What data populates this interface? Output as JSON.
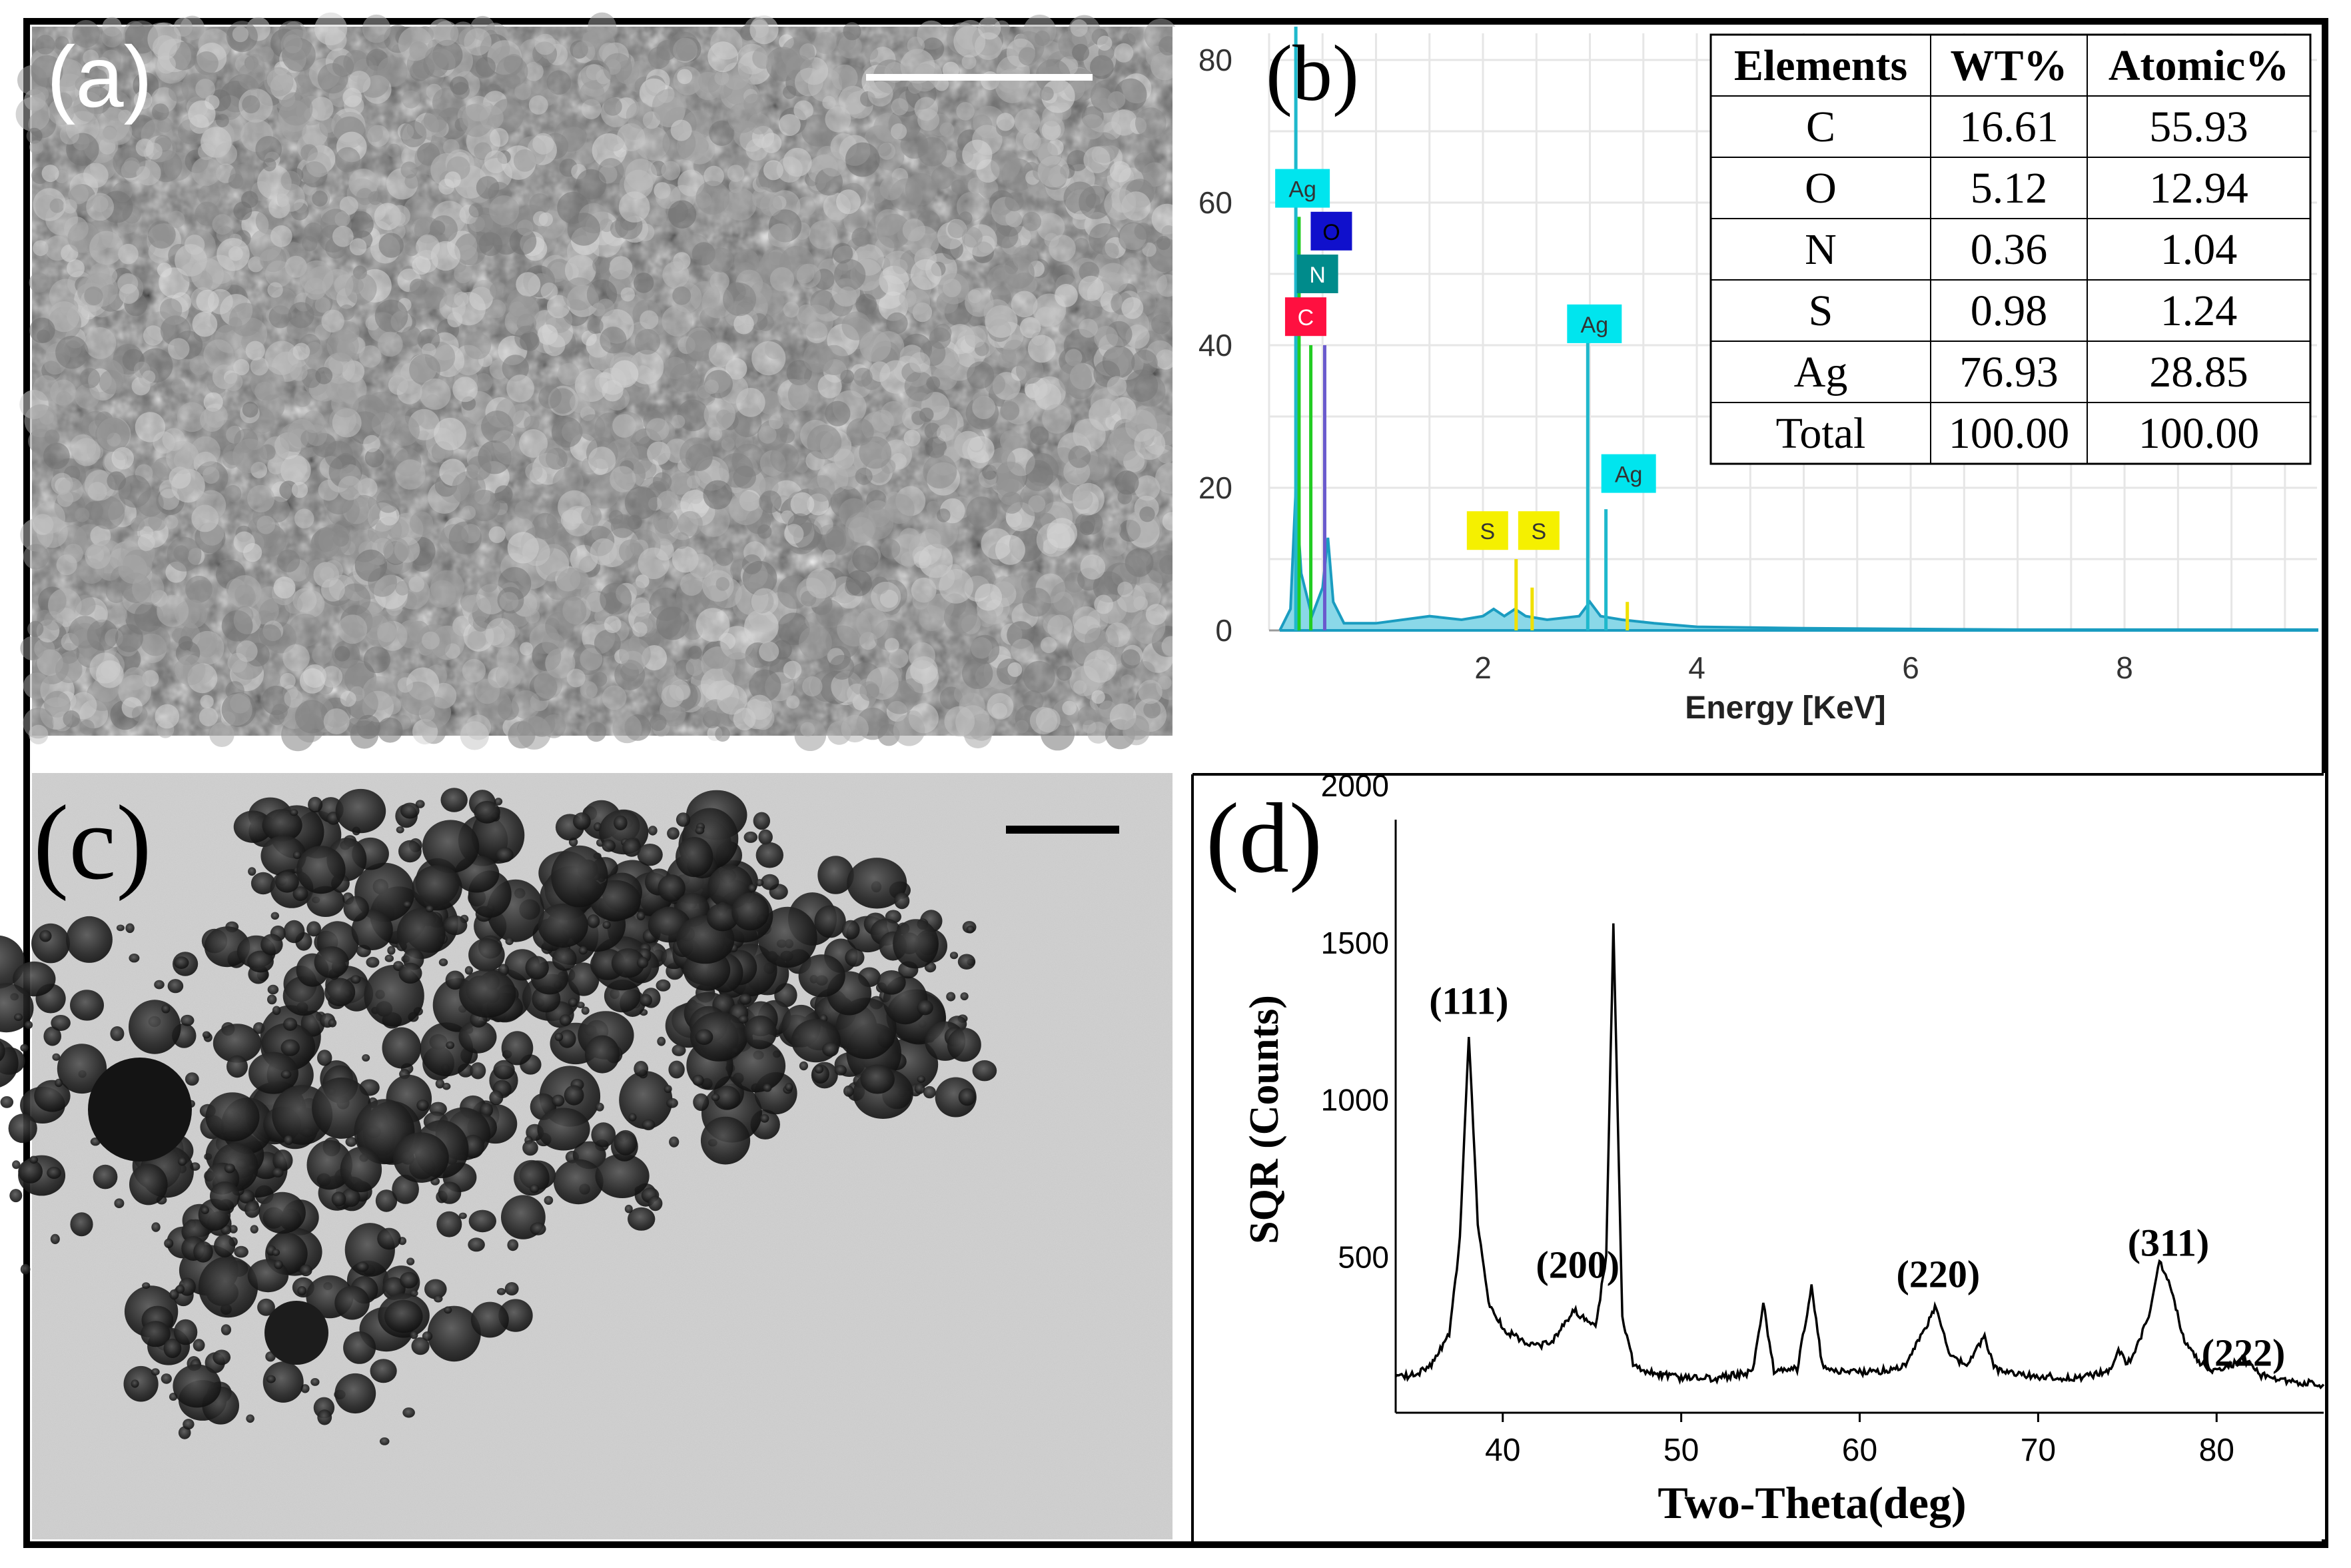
{
  "panels": {
    "a": {
      "label": "(a)"
    },
    "b": {
      "label": "(b)"
    },
    "c": {
      "label": "(c)"
    },
    "d": {
      "label": "(d)"
    }
  },
  "table": {
    "headers": [
      "Elements",
      "WT%",
      "Atomic%"
    ],
    "rows": [
      [
        "C",
        "16.61",
        "55.93"
      ],
      [
        "O",
        "5.12",
        "12.94"
      ],
      [
        "N",
        "0.36",
        "1.04"
      ],
      [
        "S",
        "0.98",
        "1.24"
      ],
      [
        "Ag",
        "76.93",
        "28.85"
      ],
      [
        "Total",
        "100.00",
        "100.00"
      ]
    ]
  },
  "chart_data": [
    {
      "type": "line",
      "panel": "b",
      "title": "",
      "xlabel": "Energy [KeV]",
      "ylabel": "",
      "xlim": [
        0,
        9.8
      ],
      "ylim": [
        0,
        80
      ],
      "grid": true,
      "x_ticks": [
        2,
        4,
        6,
        8
      ],
      "y_ticks": [
        0,
        20,
        40,
        60,
        80
      ],
      "peaks": [
        {
          "element": "C",
          "energy": 0.28,
          "height": 58,
          "color": "#22cc22"
        },
        {
          "element": "N",
          "energy": 0.39,
          "height": 40,
          "color": "#22cc22"
        },
        {
          "element": "O",
          "energy": 0.52,
          "height": 40,
          "color": "#6a5acd"
        },
        {
          "element": "Ag",
          "energy": 0.25,
          "height": 85,
          "color": "#1fb8cc"
        },
        {
          "element": "S",
          "energy": 2.31,
          "height": 10,
          "color": "#f0e000"
        },
        {
          "element": "S",
          "energy": 2.46,
          "height": 6,
          "color": "#f0e000"
        },
        {
          "element": "Ag",
          "energy": 2.98,
          "height": 41,
          "color": "#1fb8cc"
        },
        {
          "element": "Ag",
          "energy": 3.15,
          "height": 17,
          "color": "#1fb8cc"
        },
        {
          "element": "Ag",
          "energy": 3.35,
          "height": 4,
          "color": "#f0e000"
        }
      ],
      "spectrum": [
        [
          0.1,
          0
        ],
        [
          0.2,
          3
        ],
        [
          0.25,
          20
        ],
        [
          0.3,
          8
        ],
        [
          0.4,
          2
        ],
        [
          0.5,
          6
        ],
        [
          0.55,
          13
        ],
        [
          0.6,
          4
        ],
        [
          0.7,
          1
        ],
        [
          1.0,
          1
        ],
        [
          1.5,
          2
        ],
        [
          1.8,
          1.5
        ],
        [
          2.0,
          2
        ],
        [
          2.1,
          3
        ],
        [
          2.2,
          2
        ],
        [
          2.3,
          3
        ],
        [
          2.4,
          2
        ],
        [
          2.6,
          1.5
        ],
        [
          2.9,
          2
        ],
        [
          3.0,
          4
        ],
        [
          3.1,
          2
        ],
        [
          3.3,
          1.5
        ],
        [
          3.6,
          1
        ],
        [
          4.0,
          0.5
        ],
        [
          5.0,
          0.3
        ],
        [
          6.0,
          0.2
        ],
        [
          7.0,
          0.1
        ],
        [
          8.0,
          0.1
        ],
        [
          9.8,
          0.1
        ]
      ],
      "markers": [
        {
          "text": "Ag",
          "energy": 0.25,
          "level": 62,
          "bg": "#00e5ee",
          "fg": "#333333"
        },
        {
          "text": "O",
          "energy": 0.52,
          "level": 56,
          "bg": "#1010cc",
          "fg": "#000000"
        },
        {
          "text": "N",
          "energy": 0.39,
          "level": 50,
          "bg": "#008b8b",
          "fg": "#ffffff"
        },
        {
          "text": "C",
          "energy": 0.28,
          "level": 44,
          "bg": "#ff1040",
          "fg": "#ffffff"
        },
        {
          "text": "Ag",
          "energy": 2.98,
          "level": 43,
          "bg": "#00e5ee",
          "fg": "#333333"
        },
        {
          "text": "Ag",
          "energy": 3.3,
          "level": 22,
          "bg": "#00e5ee",
          "fg": "#333333"
        },
        {
          "text": "S",
          "energy": 1.98,
          "level": 14,
          "bg": "#f5f000",
          "fg": "#333333"
        },
        {
          "text": "S",
          "energy": 2.46,
          "level": 14,
          "bg": "#f5f000",
          "fg": "#333333"
        }
      ]
    },
    {
      "type": "line",
      "panel": "d",
      "title": "",
      "xlabel": "Two-Theta(deg)",
      "ylabel": "SQR (Counts)",
      "xlim": [
        34,
        86
      ],
      "ylim": [
        0,
        2100
      ],
      "x_ticks": [
        40,
        50,
        60,
        70,
        80
      ],
      "y_ticks": [
        500,
        1000,
        1500,
        2000
      ],
      "grid": false,
      "annotations": [
        {
          "text": "(111)",
          "x": 38.1,
          "y": 1270
        },
        {
          "text": "(200)",
          "x": 44.2,
          "y": 430
        },
        {
          "text": "(220)",
          "x": 64.4,
          "y": 400
        },
        {
          "text": "(311)",
          "x": 77.3,
          "y": 500
        },
        {
          "text": "(222)",
          "x": 81.5,
          "y": 150
        }
      ],
      "pattern": [
        [
          34,
          110
        ],
        [
          35,
          120
        ],
        [
          36,
          150
        ],
        [
          37,
          250
        ],
        [
          37.6,
          550
        ],
        [
          38.1,
          1200
        ],
        [
          38.6,
          600
        ],
        [
          39.2,
          350
        ],
        [
          40,
          270
        ],
        [
          41,
          230
        ],
        [
          42,
          210
        ],
        [
          43,
          240
        ],
        [
          44,
          330
        ],
        [
          44.5,
          300
        ],
        [
          45.2,
          270
        ],
        [
          45.8,
          500
        ],
        [
          46.2,
          1550
        ],
        [
          46.7,
          300
        ],
        [
          47.3,
          160
        ],
        [
          48,
          130
        ],
        [
          50,
          110
        ],
        [
          52,
          110
        ],
        [
          54,
          130
        ],
        [
          54.6,
          350
        ],
        [
          55.2,
          130
        ],
        [
          56.5,
          140
        ],
        [
          57.3,
          400
        ],
        [
          57.9,
          150
        ],
        [
          59,
          130
        ],
        [
          61,
          130
        ],
        [
          62.5,
          150
        ],
        [
          63.5,
          250
        ],
        [
          64.3,
          340
        ],
        [
          65,
          180
        ],
        [
          66,
          150
        ],
        [
          67,
          240
        ],
        [
          67.6,
          140
        ],
        [
          69,
          120
        ],
        [
          72,
          110
        ],
        [
          74,
          130
        ],
        [
          74.5,
          200
        ],
        [
          75,
          150
        ],
        [
          76.2,
          300
        ],
        [
          76.8,
          480
        ],
        [
          77.4,
          400
        ],
        [
          78.2,
          230
        ],
        [
          79,
          160
        ],
        [
          80,
          130
        ],
        [
          81.5,
          170
        ],
        [
          82.5,
          120
        ],
        [
          84,
          100
        ],
        [
          86,
          90
        ]
      ]
    }
  ]
}
